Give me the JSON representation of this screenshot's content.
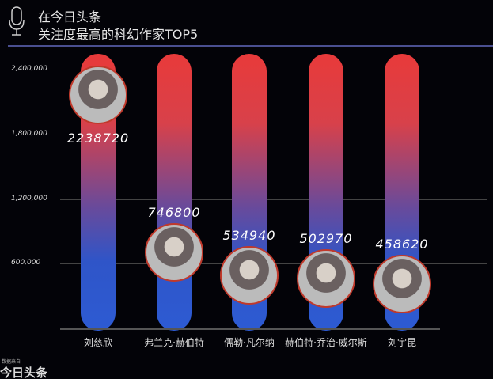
{
  "header": {
    "line1": "在今日头条",
    "line2": "关注度最高的科幻作家TOP5",
    "icon": "microphone-icon"
  },
  "chart_data": {
    "type": "bar",
    "title": "关注度最高的科幻作家TOP5",
    "categories": [
      "刘慈欣",
      "弗兰克·赫伯特",
      "儒勒·凡尔纳",
      "赫伯特·乔治·威尔斯",
      "刘宇昆"
    ],
    "values": [
      2238720,
      746800,
      534940,
      502970,
      458620
    ],
    "value_labels": [
      "2238720",
      "746800",
      "534940",
      "502970",
      "458620"
    ],
    "yticks": [
      600000,
      1200000,
      1800000,
      2400000
    ],
    "ytick_labels": [
      "600,000",
      "1,200,000",
      "1,800,000",
      "2,400,000"
    ],
    "ylim": [
      0,
      2400000
    ],
    "grid": true,
    "colors": {
      "top": "#e83a3a",
      "bottom": "#2d5bd3"
    }
  },
  "footer": {
    "source_label": "数据来自",
    "source": "今日头条"
  }
}
